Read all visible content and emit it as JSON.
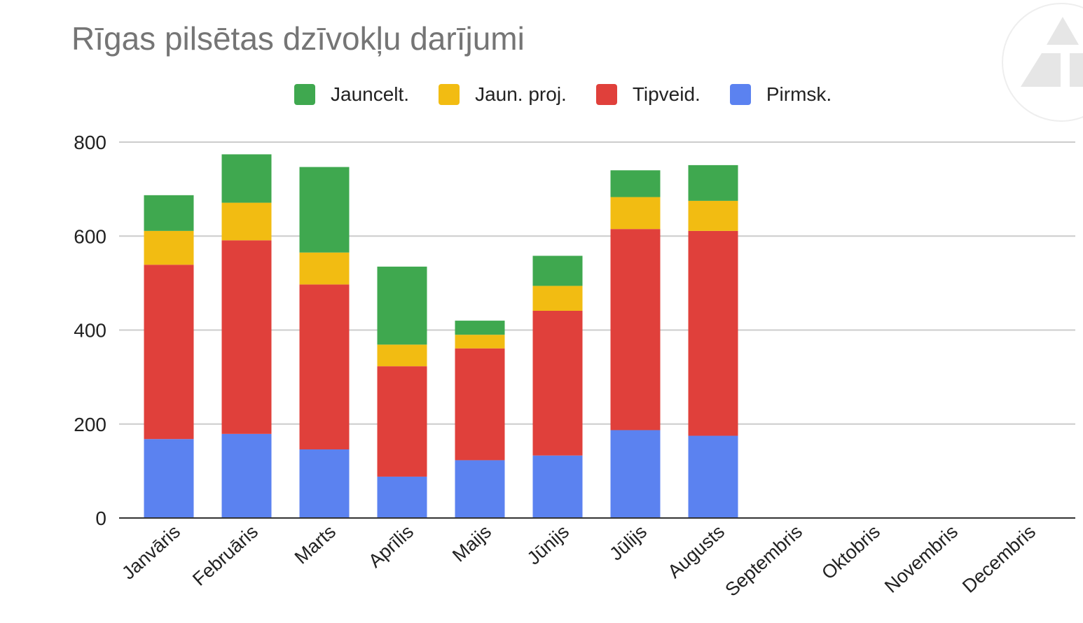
{
  "chart_data": {
    "type": "bar",
    "stacked": true,
    "title": "Rīgas pilsētas dzīvokļu darījumi",
    "xlabel": "",
    "ylabel": "",
    "ylim": [
      0,
      800
    ],
    "yticks": [
      0,
      200,
      400,
      600,
      800
    ],
    "grid": true,
    "legend": "top",
    "categories": [
      "Janvāris",
      "Februāris",
      "Marts",
      "Aprīlis",
      "Maijs",
      "Jūnijs",
      "Jūlijs",
      "Augusts",
      "Septembris",
      "Oktobris",
      "Novembris",
      "Decembris"
    ],
    "series": [
      {
        "name": "Pirmsk.",
        "color": "#5b82f0",
        "values": [
          168,
          179,
          146,
          88,
          123,
          133,
          187,
          175,
          null,
          null,
          null,
          null
        ]
      },
      {
        "name": "Tipveid.",
        "color": "#e0403b",
        "values": [
          371,
          412,
          351,
          235,
          238,
          308,
          428,
          436,
          null,
          null,
          null,
          null
        ]
      },
      {
        "name": "Jaun. proj.",
        "color": "#f2bc12",
        "values": [
          72,
          80,
          68,
          46,
          29,
          53,
          68,
          64,
          null,
          null,
          null,
          null
        ]
      },
      {
        "name": "Jauncelt.",
        "color": "#3fa84f",
        "values": [
          76,
          103,
          182,
          166,
          30,
          64,
          57,
          76,
          null,
          null,
          null,
          null
        ]
      }
    ],
    "legend_order": [
      "Jauncelt.",
      "Jaun. proj.",
      "Tipveid.",
      "Pirmsk."
    ]
  }
}
